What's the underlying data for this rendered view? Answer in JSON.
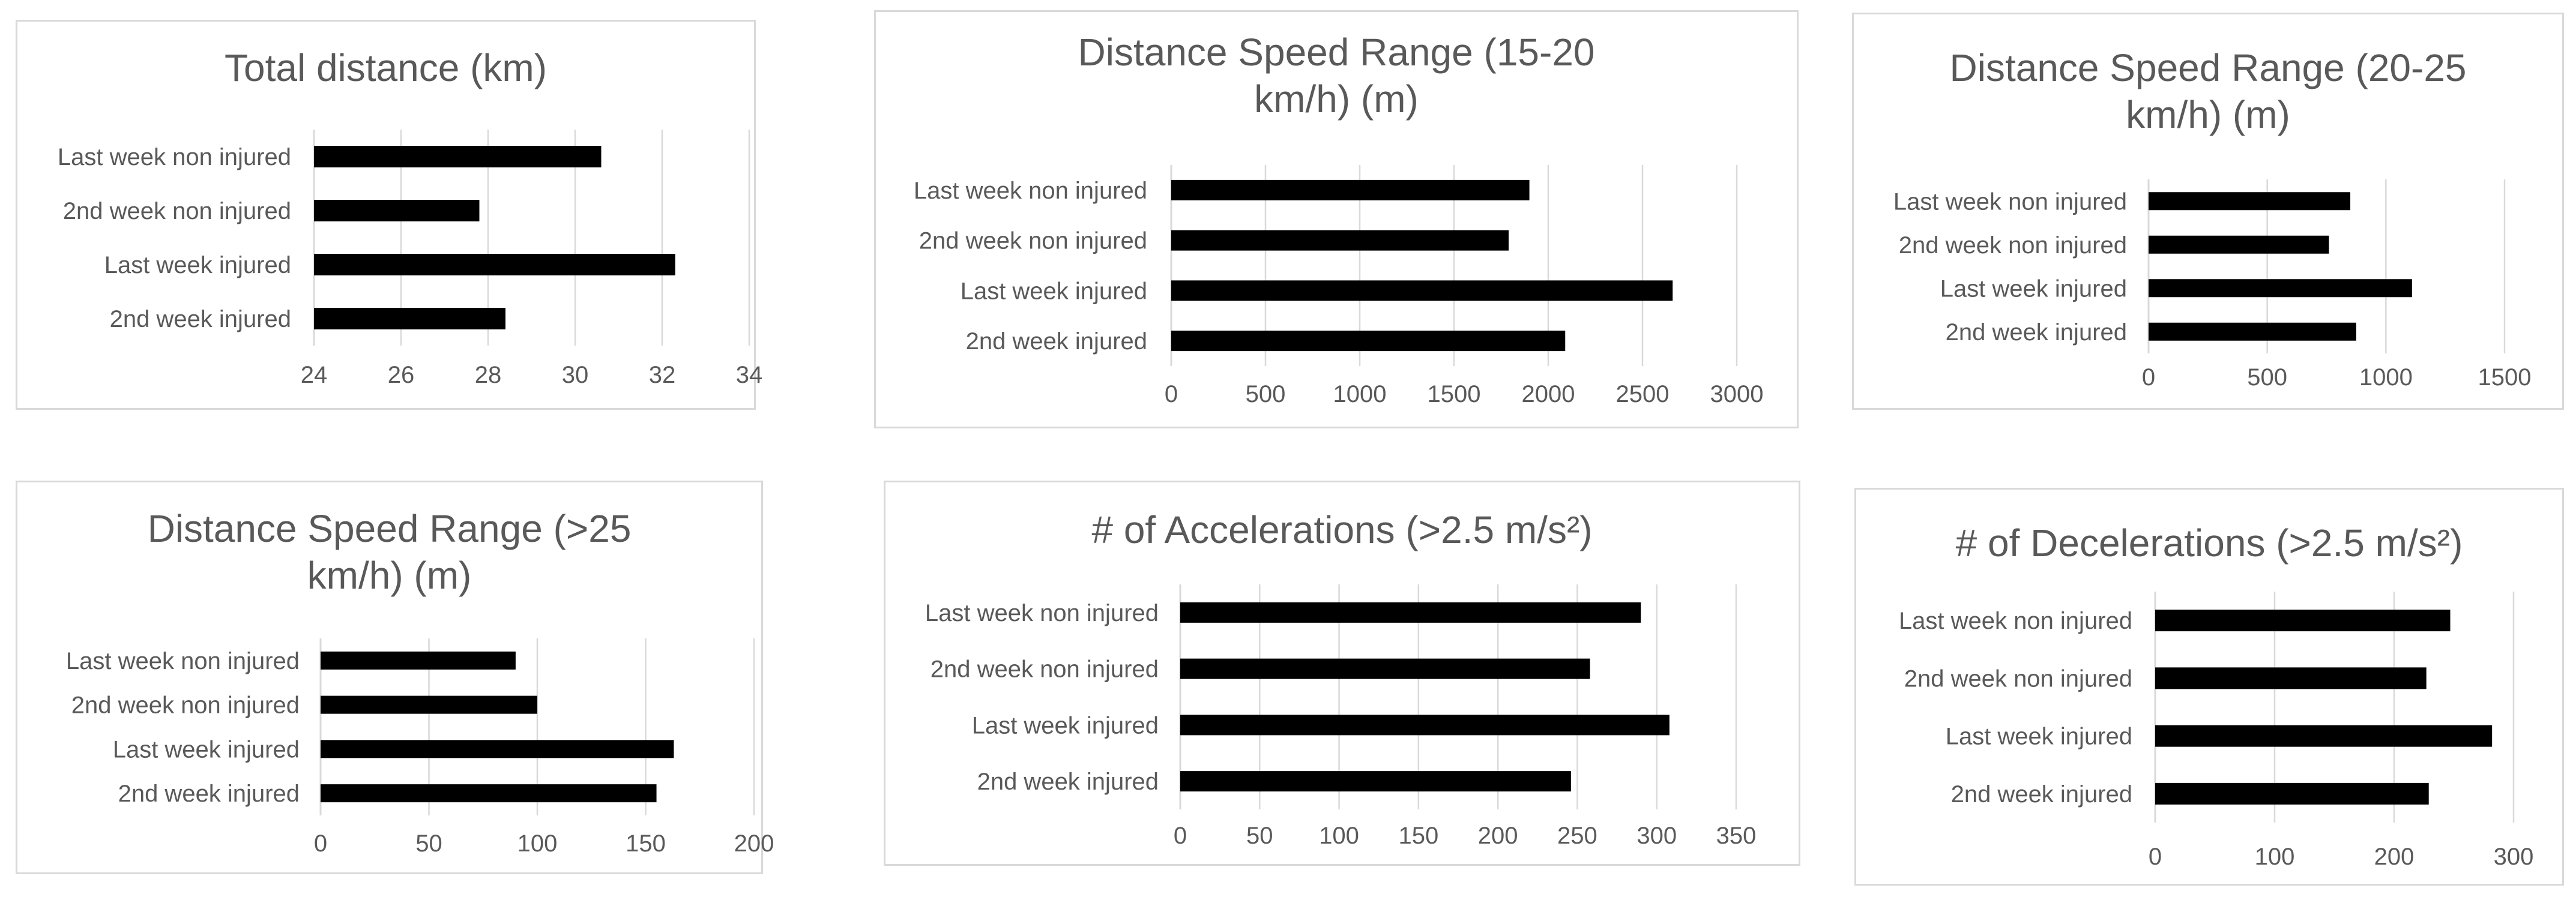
{
  "bar_color": "#000000",
  "grid_color": "#d9d9d9",
  "text_color": "#595959",
  "chart_data": [
    {
      "type": "bar",
      "orientation": "horizontal",
      "title": "Total distance (km)",
      "categories": [
        "Last week non injured",
        "2nd week non injured",
        "Last week injured",
        "2nd week injured"
      ],
      "values": [
        30.6,
        27.8,
        32.3,
        28.4
      ],
      "xlim": [
        24,
        34
      ],
      "ticks": [
        24,
        26,
        28,
        30,
        32,
        34
      ],
      "grid": true
    },
    {
      "type": "bar",
      "orientation": "horizontal",
      "title": "Distance Speed Range (15-20 km/h) (m)",
      "categories": [
        "Last week non injured",
        "2nd week non injured",
        "Last week injured",
        "2nd week injured"
      ],
      "values": [
        1900,
        1790,
        2660,
        2090
      ],
      "xlim": [
        0,
        3000
      ],
      "ticks": [
        0,
        500,
        1000,
        1500,
        2000,
        2500,
        3000
      ],
      "grid": true
    },
    {
      "type": "bar",
      "orientation": "horizontal",
      "title": "Distance Speed Range (20-25 km/h) (m)",
      "categories": [
        "Last week non injured",
        "2nd week non injured",
        "Last week injured",
        "2nd week injured"
      ],
      "values": [
        850,
        760,
        1110,
        875
      ],
      "xlim": [
        0,
        1500
      ],
      "ticks": [
        0,
        500,
        1000,
        1500
      ],
      "grid": true
    },
    {
      "type": "bar",
      "orientation": "horizontal",
      "title": "Distance Speed Range (>25 km/h) (m)",
      "categories": [
        "Last week non injured",
        "2nd week non injured",
        "Last week injured",
        "2nd week injured"
      ],
      "values": [
        90,
        100,
        163,
        155
      ],
      "xlim": [
        0,
        200
      ],
      "ticks": [
        0,
        50,
        100,
        150,
        200
      ],
      "grid": true
    },
    {
      "type": "bar",
      "orientation": "horizontal",
      "title": "# of Accelerations (>2.5 m/s²)",
      "categories": [
        "Last week non injured",
        "2nd week non injured",
        "Last week injured",
        "2nd week injured"
      ],
      "values": [
        290,
        258,
        308,
        246
      ],
      "xlim": [
        0,
        350
      ],
      "ticks": [
        0,
        50,
        100,
        150,
        200,
        250,
        300,
        350
      ],
      "grid": true
    },
    {
      "type": "bar",
      "orientation": "horizontal",
      "title": "# of Decelerations (>2.5 m/s²)",
      "categories": [
        "Last week non injured",
        "2nd week non injured",
        "Last week injured",
        "2nd week injured"
      ],
      "values": [
        247,
        227,
        282,
        229
      ],
      "xlim": [
        0,
        300
      ],
      "ticks": [
        0,
        100,
        200,
        300
      ],
      "grid": true
    }
  ]
}
